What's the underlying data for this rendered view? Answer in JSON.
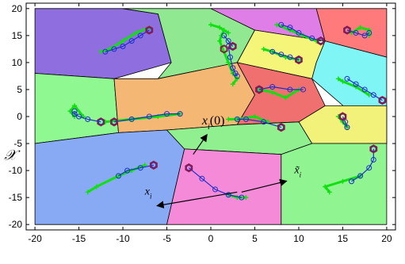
{
  "chart_data": {
    "type": "scatter",
    "title": "",
    "xlabel": "",
    "ylabel": "",
    "xlim": [
      -21,
      21
    ],
    "ylim": [
      -21,
      21
    ],
    "xticks": [
      -20,
      -15,
      -10,
      -5,
      0,
      5,
      10,
      15,
      20
    ],
    "yticks": [
      -20,
      -15,
      -10,
      -5,
      0,
      5,
      10,
      15,
      20
    ],
    "x_tick_labels": [
      "-20",
      "-15",
      "-10",
      "-5",
      "0",
      "5",
      "10",
      "15",
      "20"
    ],
    "y_tick_labels": [
      "-20",
      "-15",
      "-10",
      "-5",
      "0",
      "5",
      "10",
      "15",
      "20"
    ],
    "grid": false,
    "legend": "none",
    "colors": {
      "robot_marker": "#8b1a4a",
      "blue_path": "#1d2fcc",
      "green_path": "#10e010"
    },
    "regions": [
      {
        "color": "#8f6fe0",
        "vertices": [
          [
            -20,
            20
          ],
          [
            -10,
            20
          ],
          [
            -6,
            19
          ],
          [
            -4.5,
            10
          ],
          [
            -11,
            7
          ],
          [
            -20,
            8
          ]
        ]
      },
      {
        "color": "#90e890",
        "vertices": [
          [
            -10,
            20
          ],
          [
            0,
            20
          ],
          [
            5,
            16
          ],
          [
            3,
            10
          ],
          [
            -6,
            7
          ],
          [
            -4.5,
            10
          ],
          [
            -6,
            19
          ]
        ]
      },
      {
        "color": "#e07ee8",
        "vertices": [
          [
            0,
            20
          ],
          [
            12,
            20
          ],
          [
            13,
            14
          ],
          [
            5,
            16
          ]
        ]
      },
      {
        "color": "#ff7a7a",
        "vertices": [
          [
            12,
            20
          ],
          [
            20,
            20
          ],
          [
            20,
            11
          ],
          [
            13,
            14
          ]
        ]
      },
      {
        "color": "#90f890",
        "vertices": [
          [
            -20,
            8
          ],
          [
            -11,
            7
          ],
          [
            -10.5,
            -3
          ],
          [
            -20,
            -5
          ]
        ]
      },
      {
        "color": "#f5b774",
        "vertices": [
          [
            -11,
            7
          ],
          [
            -6,
            7
          ],
          [
            3,
            10
          ],
          [
            5,
            4
          ],
          [
            3,
            -1.5
          ],
          [
            -1,
            -2
          ],
          [
            -5,
            -2.5
          ],
          [
            -10.5,
            -3
          ]
        ]
      },
      {
        "color": "#f5f57a",
        "vertices": [
          [
            5,
            16
          ],
          [
            13,
            14
          ],
          [
            12,
            10
          ],
          [
            11.5,
            7
          ],
          [
            3,
            10
          ]
        ]
      },
      {
        "color": "#80f5f5",
        "vertices": [
          [
            13,
            14
          ],
          [
            20,
            11
          ],
          [
            20,
            -5
          ],
          [
            11.5,
            7
          ],
          [
            12,
            10
          ]
        ]
      },
      {
        "color": "#f07070",
        "vertices": [
          [
            3,
            10
          ],
          [
            11.5,
            7
          ],
          [
            13,
            2
          ],
          [
            10,
            -1
          ],
          [
            3,
            -1.5
          ],
          [
            5,
            4
          ]
        ]
      },
      {
        "color": "#f2f27a",
        "vertices": [
          [
            13,
            2
          ],
          [
            20,
            2
          ],
          [
            20,
            -5
          ],
          [
            11.5,
            -5
          ],
          [
            10,
            -1
          ]
        ]
      },
      {
        "color": "#88aaf5",
        "vertices": [
          [
            -20,
            -5
          ],
          [
            -10.5,
            -3
          ],
          [
            -5,
            -2.5
          ],
          [
            -3,
            -6
          ],
          [
            -5,
            -20
          ],
          [
            -20,
            -20
          ]
        ]
      },
      {
        "color": "#90f090",
        "vertices": [
          [
            -5,
            -2.5
          ],
          [
            -1,
            -2
          ],
          [
            3,
            -1.5
          ],
          [
            10,
            -1
          ],
          [
            11.5,
            -5
          ],
          [
            8,
            -7
          ],
          [
            -3,
            -6
          ]
        ]
      },
      {
        "color": "#f58ad8",
        "vertices": [
          [
            -3,
            -6
          ],
          [
            8,
            -7
          ],
          [
            8,
            -20
          ],
          [
            -5,
            -20
          ]
        ]
      },
      {
        "color": "#90f590",
        "vertices": [
          [
            8,
            -7
          ],
          [
            11.5,
            -5
          ],
          [
            20,
            -5
          ],
          [
            20,
            -20
          ],
          [
            8,
            -20
          ]
        ]
      }
    ],
    "trajectories": [
      {
        "blue": [
          [
            -7,
            16
          ],
          [
            -8,
            15
          ],
          [
            -9,
            14
          ],
          [
            -10,
            13
          ],
          [
            -11,
            12.5
          ],
          [
            -12,
            12
          ]
        ],
        "green": [
          [
            -7,
            16.5
          ],
          [
            -8.5,
            15.5
          ],
          [
            -10,
            14
          ],
          [
            -11.5,
            12.5
          ],
          [
            -12.5,
            12
          ]
        ],
        "marker": [
          -7,
          16
        ]
      },
      {
        "blue": [
          [
            2,
            13
          ],
          [
            2.2,
            11
          ],
          [
            2.5,
            9
          ],
          [
            2.8,
            8
          ],
          [
            3,
            7.5
          ]
        ],
        "green": [
          [
            1.5,
            16
          ],
          [
            1.2,
            15
          ],
          [
            1,
            14
          ],
          [
            2,
            10
          ],
          [
            2.5,
            8
          ],
          [
            3,
            7
          ],
          [
            2.5,
            6
          ]
        ],
        "marker": [
          1.5,
          12.5
        ]
      },
      {
        "blue": [
          [
            2.5,
            13
          ],
          [
            2,
            14
          ],
          [
            1.5,
            15
          ]
        ],
        "green": [
          [
            0,
            17
          ],
          [
            1,
            16.5
          ],
          [
            2,
            15.5
          ]
        ],
        "marker": [
          2.5,
          13
        ]
      },
      {
        "blue": [
          [
            8,
            17
          ],
          [
            9,
            16.5
          ],
          [
            10,
            15.5
          ],
          [
            11.5,
            14.5
          ],
          [
            12.5,
            14
          ]
        ],
        "green": [
          [
            7.5,
            17
          ],
          [
            9,
            16
          ],
          [
            10.5,
            15
          ],
          [
            12,
            14
          ]
        ],
        "marker": [
          12.5,
          14
        ]
      },
      {
        "blue": [
          [
            10,
            10.5
          ],
          [
            9,
            11
          ],
          [
            8,
            11.5
          ],
          [
            7,
            12
          ]
        ],
        "green": [
          [
            10,
            10.5
          ],
          [
            8.5,
            11
          ],
          [
            7,
            12
          ],
          [
            6,
            12.5
          ]
        ],
        "marker": [
          10,
          10.5
        ]
      },
      {
        "blue": [
          [
            15.5,
            16
          ],
          [
            16.5,
            15.5
          ],
          [
            17.5,
            15
          ],
          [
            18,
            15.5
          ]
        ],
        "green": [
          [
            16,
            15.5
          ],
          [
            17,
            16.5
          ],
          [
            18,
            16
          ],
          [
            18,
            15
          ]
        ],
        "marker": [
          15.5,
          16
        ]
      },
      {
        "blue": [
          [
            -11,
            -1
          ],
          [
            -9,
            -0.5
          ],
          [
            -7,
            0
          ],
          [
            -5,
            0.5
          ],
          [
            -3.5,
            0.5
          ]
        ],
        "green": [
          [
            -12,
            -1
          ],
          [
            -9,
            -0.5
          ],
          [
            -6,
            0
          ],
          [
            -3.5,
            0.5
          ]
        ],
        "marker": [
          -12.5,
          -1
        ]
      },
      {
        "blue": [
          [
            -12.5,
            -1
          ],
          [
            -14,
            -0.5
          ],
          [
            -15,
            0
          ],
          [
            -15.5,
            0.5
          ],
          [
            -15.5,
            1
          ]
        ],
        "green": [
          [
            -15.5,
            0
          ],
          [
            -16,
            1
          ],
          [
            -15.5,
            2
          ],
          [
            -14.5,
            0
          ]
        ],
        "marker": [
          -11,
          -1
        ]
      },
      {
        "blue": [
          [
            8,
            -2
          ],
          [
            6,
            -1
          ],
          [
            4,
            -0.5
          ],
          [
            3,
            -0.5
          ]
        ],
        "green": [
          [
            6.5,
            -1
          ],
          [
            5,
            0
          ],
          [
            3,
            -0.5
          ],
          [
            2,
            -0.5
          ]
        ],
        "marker": [
          8,
          -2
        ]
      },
      {
        "blue": [
          [
            5.5,
            5
          ],
          [
            7,
            5.5
          ],
          [
            9,
            5
          ],
          [
            10.5,
            5
          ]
        ],
        "green": [
          [
            5.5,
            5
          ],
          [
            7,
            4.5
          ],
          [
            8.5,
            3.5
          ],
          [
            10,
            5
          ]
        ],
        "marker": [
          5.5,
          5
        ]
      },
      {
        "blue": [
          [
            15,
            0
          ],
          [
            15.3,
            -1
          ],
          [
            15.5,
            -2
          ]
        ],
        "green": [
          [
            14.5,
            0
          ],
          [
            15,
            -1
          ],
          [
            15.5,
            -2
          ]
        ],
        "marker": [
          15,
          0
        ]
      },
      {
        "blue": [
          [
            19.5,
            3
          ],
          [
            18.5,
            4
          ],
          [
            17.5,
            5
          ],
          [
            16.5,
            6
          ],
          [
            15.5,
            7
          ]
        ],
        "green": [
          [
            18,
            4
          ],
          [
            16.5,
            5.5
          ],
          [
            15,
            6.5
          ],
          [
            14.5,
            7
          ]
        ],
        "marker": [
          19.5,
          3
        ]
      },
      {
        "blue": [
          [
            -6.5,
            -9
          ],
          [
            -8,
            -9.5
          ],
          [
            -9.5,
            -10
          ],
          [
            -10.5,
            -11
          ]
        ],
        "green": [
          [
            -7.5,
            -9
          ],
          [
            -9,
            -10
          ],
          [
            -10.5,
            -11
          ],
          [
            -13,
            -13
          ],
          [
            -14,
            -14
          ]
        ],
        "marker": [
          -6.5,
          -9
        ]
      },
      {
        "blue": [
          [
            -2.5,
            -9.5
          ],
          [
            -1,
            -11.5
          ],
          [
            0.5,
            -13.5
          ],
          [
            2,
            -14.5
          ],
          [
            3.5,
            -15
          ]
        ],
        "green": [
          [
            2,
            -14.5
          ],
          [
            3,
            -15
          ],
          [
            4,
            -15
          ]
        ],
        "marker": [
          -2.5,
          -9.5
        ]
      },
      {
        "blue": [
          [
            18.5,
            -6
          ],
          [
            18.5,
            -8
          ],
          [
            18,
            -9.5
          ],
          [
            17,
            -11
          ],
          [
            16,
            -12
          ]
        ],
        "green": [
          [
            17,
            -11
          ],
          [
            15,
            -12
          ],
          [
            13,
            -13
          ],
          [
            13.5,
            -14
          ]
        ],
        "marker": [
          18.5,
          -6
        ]
      }
    ],
    "annotations": [
      {
        "text": "x",
        "subscript": "i",
        "suffix": "(0)",
        "pos": [
          -1,
          -1.5
        ],
        "size": 16
      },
      {
        "text": "x",
        "subscript": "i",
        "suffix": "",
        "pos": [
          -7.5,
          -14.5
        ],
        "size": 14
      },
      {
        "text": "x̃",
        "subscript": "i",
        "suffix": "",
        "pos": [
          9.5,
          -10.5
        ],
        "size": 14
      },
      {
        "text": "𝒳",
        "subscript": "",
        "suffix": "",
        "pos": [
          -23.5,
          -8
        ],
        "size": 18
      }
    ],
    "arrows": [
      {
        "from": [
          -2,
          -7
        ],
        "to": [
          -0.5,
          -3.5
        ]
      },
      {
        "from": [
          3,
          -14
        ],
        "to": [
          -6,
          -16.5
        ]
      },
      {
        "from": [
          3.5,
          -14
        ],
        "to": [
          8.5,
          -12
        ]
      }
    ]
  }
}
